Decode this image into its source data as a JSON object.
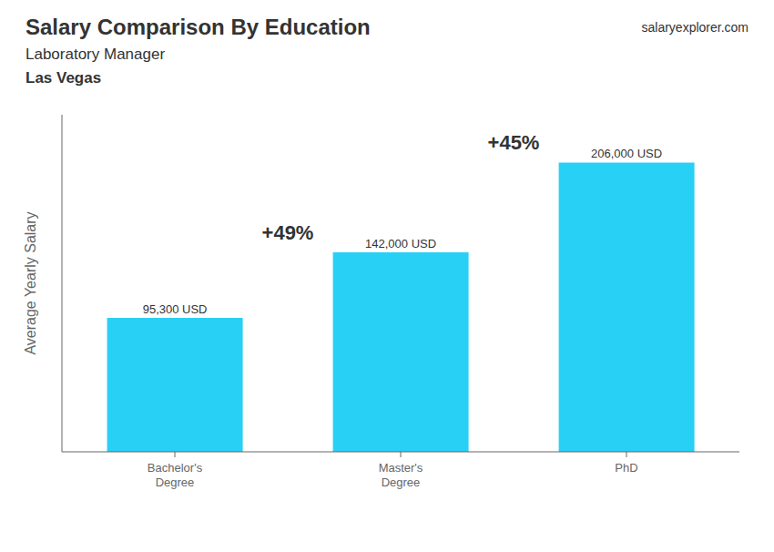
{
  "chart_data": {
    "type": "bar",
    "title": "Salary Comparison By Education",
    "subtitle": [
      "Laboratory Manager",
      "Las Vegas"
    ],
    "ylabel": "Average Yearly Salary",
    "categories": [
      "Bachelor's\nDegree",
      "Master's\nDegree",
      "PhD"
    ],
    "values": [
      95300,
      142000,
      206000
    ],
    "value_labels": [
      "95,300 USD",
      "142,000 USD",
      "206,000 USD"
    ],
    "color": "#29d0f5",
    "ylim": [
      0,
      240000
    ],
    "data_labels": true,
    "tick_labels": "x",
    "grid": false,
    "annotations": [
      "+49%",
      "+45%",
      "salaryexplorer.com"
    ]
  }
}
